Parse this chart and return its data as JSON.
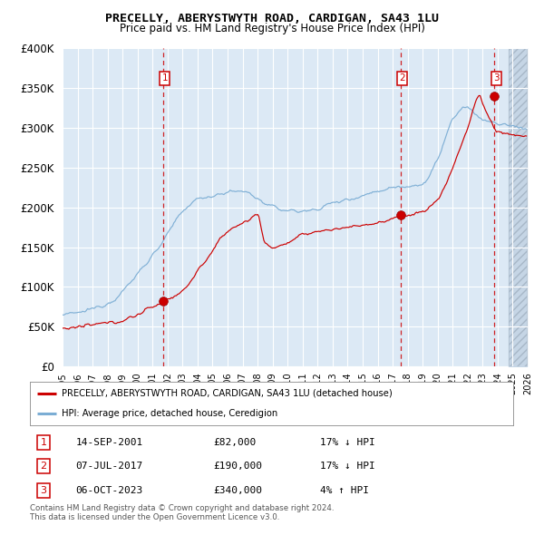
{
  "title": "PRECELLY, ABERYSTWYTH ROAD, CARDIGAN, SA43 1LU",
  "subtitle": "Price paid vs. HM Land Registry's House Price Index (HPI)",
  "legend_label_red": "PRECELLY, ABERYSTWYTH ROAD, CARDIGAN, SA43 1LU (detached house)",
  "legend_label_blue": "HPI: Average price, detached house, Ceredigion",
  "footer_line1": "Contains HM Land Registry data © Crown copyright and database right 2024.",
  "footer_line2": "This data is licensed under the Open Government Licence v3.0.",
  "transactions": [
    {
      "num": 1,
      "date": "14-SEP-2001",
      "price": 82000,
      "hpi_rel": "17% ↓ HPI"
    },
    {
      "num": 2,
      "date": "07-JUL-2017",
      "price": 190000,
      "hpi_rel": "17% ↓ HPI"
    },
    {
      "num": 3,
      "date": "06-OCT-2023",
      "price": 340000,
      "hpi_rel": "4% ↑ HPI"
    }
  ],
  "x_start_year": 1995,
  "x_end_year": 2026,
  "y_max": 400000,
  "y_ticks": [
    0,
    50000,
    100000,
    150000,
    200000,
    250000,
    300000,
    350000,
    400000
  ],
  "y_tick_labels": [
    "£0",
    "£50K",
    "£100K",
    "£150K",
    "£200K",
    "£250K",
    "£300K",
    "£350K",
    "£400K"
  ],
  "background_color": "#dce9f5",
  "red_line_color": "#cc0000",
  "blue_line_color": "#7badd4",
  "grid_color": "#ffffff",
  "transaction_marker_color": "#cc0000",
  "vline_color": "#cc0000"
}
